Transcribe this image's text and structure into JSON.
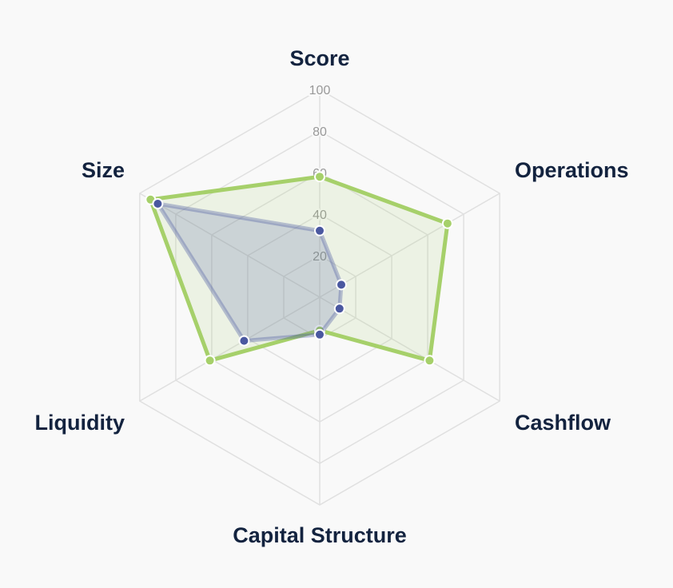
{
  "chart_data": {
    "type": "radar",
    "title": "",
    "axes": [
      "Score",
      "Operations",
      "Cashflow",
      "Capital Structure",
      "Liquidity",
      "Size"
    ],
    "ticks": [
      20,
      40,
      60,
      80,
      100
    ],
    "tick_labels": [
      "20",
      "40",
      "60",
      "80",
      "100"
    ],
    "range": [
      0,
      100
    ],
    "grid": true,
    "legend": "none",
    "series": [
      {
        "values": [
          58,
          71,
          61,
          16,
          61,
          94
        ],
        "color": "#a6d06a"
      },
      {
        "values": [
          32,
          12,
          11,
          18,
          42,
          90
        ],
        "color": "#4a58a0"
      }
    ]
  }
}
